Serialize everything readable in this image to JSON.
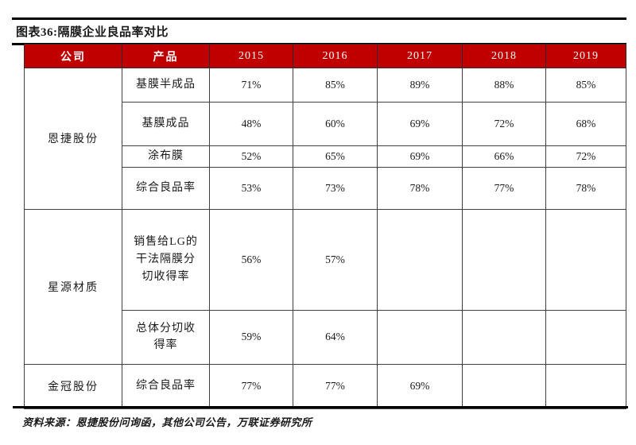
{
  "figure": {
    "title": "图表36:隔膜企业良品率对比",
    "source": "资料来源：恩捷股份问询函，其他公司公告，万联证券研究所"
  },
  "colors": {
    "header_bg": "#c00000",
    "header_text": "#ffffff"
  },
  "table": {
    "headers": [
      "公司",
      "产品",
      "2015",
      "2016",
      "2017",
      "2018",
      "2019"
    ],
    "groups": [
      {
        "company": "恩捷股份",
        "rows": [
          {
            "product": "基膜半成品",
            "values": [
              "71%",
              "85%",
              "89%",
              "88%",
              "85%"
            ]
          },
          {
            "product": "基膜成品",
            "values": [
              "48%",
              "60%",
              "69%",
              "72%",
              "68%"
            ]
          },
          {
            "product": "涂布膜",
            "values": [
              "52%",
              "65%",
              "69%",
              "66%",
              "72%"
            ]
          },
          {
            "product": "综合良品率",
            "values": [
              "53%",
              "73%",
              "78%",
              "77%",
              "78%"
            ]
          }
        ]
      },
      {
        "company": "星源材质",
        "rows": [
          {
            "product": "销售给LG的干法隔膜分切收得率",
            "values": [
              "56%",
              "57%",
              "",
              "",
              ""
            ]
          },
          {
            "product": "总体分切收得率",
            "values": [
              "59%",
              "64%",
              "",
              "",
              ""
            ]
          }
        ]
      },
      {
        "company": "金冠股份",
        "rows": [
          {
            "product": "综合良品率",
            "values": [
              "77%",
              "77%",
              "69%",
              "",
              ""
            ]
          }
        ]
      }
    ]
  }
}
